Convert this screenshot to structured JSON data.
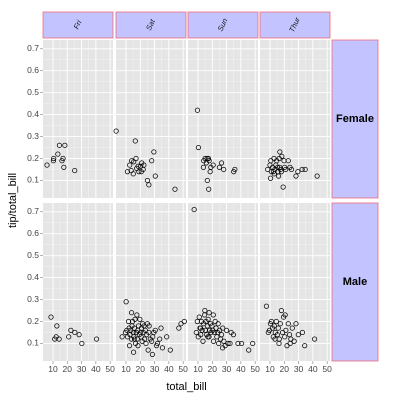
{
  "chart_data": {
    "type": "scatter",
    "xlabel": "total_bill",
    "ylabel": "tip/total_bill",
    "xlim": [
      3,
      52
    ],
    "ylim": [
      0.02,
      0.74
    ],
    "x_ticks": [
      10,
      20,
      30,
      40,
      50
    ],
    "x_tick_labels": [
      "10",
      "20",
      "30",
      "40",
      "50"
    ],
    "y_ticks": [
      0.1,
      0.2,
      0.3,
      0.4,
      0.5,
      0.6,
      0.7
    ],
    "y_tick_labels": [
      "0.1",
      "0.2",
      "0.3",
      "0.4",
      "0.5",
      "0.6",
      "0.7"
    ],
    "grid": true,
    "facet_cols": [
      "Fri",
      "Sat",
      "Sun",
      "Thur"
    ],
    "facet_rows": [
      "Female",
      "Male"
    ],
    "strip_color": "#c3c3ff",
    "strip_border_color": "#f06a7a",
    "panel_background": "#e5e5e5",
    "panels": [
      {
        "row": "Female",
        "col": "Fri",
        "points": [
          [
            5.8,
            0.17
          ],
          [
            10.3,
            0.19
          ],
          [
            13.4,
            0.22
          ],
          [
            14.5,
            0.26
          ],
          [
            16.3,
            0.19
          ],
          [
            17.6,
            0.16
          ],
          [
            18.3,
            0.26
          ],
          [
            17,
            0.2
          ],
          [
            25.2,
            0.145
          ],
          [
            10.5,
            0.2
          ]
        ]
      },
      {
        "row": "Female",
        "col": "Sat",
        "points": [
          [
            3.1,
            0.325
          ],
          [
            11,
            0.14
          ],
          [
            12.6,
            0.17
          ],
          [
            13.6,
            0.145
          ],
          [
            14,
            0.19
          ],
          [
            15.4,
            0.185
          ],
          [
            16.5,
            0.28
          ],
          [
            17.5,
            0.155
          ],
          [
            17,
            0.2
          ],
          [
            18.5,
            0.165
          ],
          [
            19,
            0.14
          ],
          [
            20.3,
            0.165
          ],
          [
            21,
            0.18
          ],
          [
            22,
            0.15
          ],
          [
            22.5,
            0.17
          ],
          [
            20.7,
            0.14
          ],
          [
            25,
            0.1
          ],
          [
            26,
            0.08
          ],
          [
            28,
            0.19
          ],
          [
            29.5,
            0.23
          ],
          [
            30.5,
            0.12
          ],
          [
            44.3,
            0.06
          ],
          [
            15.1,
            0.13
          ]
        ]
      },
      {
        "row": "Female",
        "col": "Sun",
        "points": [
          [
            9.6,
            0.42
          ],
          [
            10.3,
            0.25
          ],
          [
            14,
            0.19
          ],
          [
            15,
            0.2
          ],
          [
            15.8,
            0.18
          ],
          [
            16.4,
            0.2
          ],
          [
            17.3,
            0.2
          ],
          [
            17.8,
            0.19
          ],
          [
            16.5,
            0.1
          ],
          [
            17.5,
            0.06
          ],
          [
            18.5,
            0.14
          ],
          [
            19,
            0.16
          ],
          [
            20.6,
            0.17
          ],
          [
            25,
            0.16
          ],
          [
            26.5,
            0.18
          ],
          [
            28,
            0.15
          ],
          [
            35,
            0.14
          ],
          [
            35.8,
            0.15
          ],
          [
            13.8,
            0.16
          ]
        ]
      },
      {
        "row": "Female",
        "col": "Thur",
        "points": [
          [
            8.4,
            0.15
          ],
          [
            10,
            0.17
          ],
          [
            10.6,
            0.19
          ],
          [
            11,
            0.14
          ],
          [
            11.8,
            0.16
          ],
          [
            12.4,
            0.14
          ],
          [
            12.8,
            0.2
          ],
          [
            13.4,
            0.15
          ],
          [
            14.1,
            0.17
          ],
          [
            14.7,
            0.19
          ],
          [
            15.3,
            0.16
          ],
          [
            15.6,
            0.14
          ],
          [
            16,
            0.12
          ],
          [
            16.4,
            0.2
          ],
          [
            16.8,
            0.16
          ],
          [
            17.4,
            0.15
          ],
          [
            18,
            0.14
          ],
          [
            18.3,
            0.21
          ],
          [
            19.2,
            0.07
          ],
          [
            19.8,
            0.19
          ],
          [
            20.3,
            0.16
          ],
          [
            21,
            0.15
          ],
          [
            22.8,
            0.19
          ],
          [
            24,
            0.16
          ],
          [
            25,
            0.15
          ],
          [
            28.2,
            0.12
          ],
          [
            29.5,
            0.14
          ],
          [
            34.6,
            0.15
          ],
          [
            43,
            0.12
          ],
          [
            16.9,
            0.23
          ],
          [
            32.5,
            0.15
          ],
          [
            13,
            0.13
          ],
          [
            10.4,
            0.11
          ]
        ]
      },
      {
        "row": "Male",
        "col": "Fri",
        "points": [
          [
            8.6,
            0.22
          ],
          [
            11.2,
            0.12
          ],
          [
            12.2,
            0.13
          ],
          [
            12.7,
            0.18
          ],
          [
            14.3,
            0.12
          ],
          [
            21,
            0.13
          ],
          [
            22.5,
            0.16
          ],
          [
            25.3,
            0.15
          ],
          [
            28.3,
            0.14
          ],
          [
            30.2,
            0.1
          ],
          [
            40.5,
            0.12
          ]
        ]
      },
      {
        "row": "Male",
        "col": "Sat",
        "points": [
          [
            7.3,
            0.13
          ],
          [
            9.6,
            0.15
          ],
          [
            10.1,
            0.29
          ],
          [
            10.6,
            0.16
          ],
          [
            11.1,
            0.13
          ],
          [
            11.8,
            0.2
          ],
          [
            12.2,
            0.17
          ],
          [
            12.8,
            0.14
          ],
          [
            13.4,
            0.16
          ],
          [
            13.8,
            0.12
          ],
          [
            14.2,
            0.18
          ],
          [
            14.6,
            0.2
          ],
          [
            15,
            0.15
          ],
          [
            15.5,
            0.13
          ],
          [
            15.9,
            0.17
          ],
          [
            16.3,
            0.21
          ],
          [
            16.7,
            0.1
          ],
          [
            17.2,
            0.15
          ],
          [
            17.6,
            0.23
          ],
          [
            17.9,
            0.12
          ],
          [
            18.3,
            0.16
          ],
          [
            18.8,
            0.18
          ],
          [
            19.3,
            0.14
          ],
          [
            19.7,
            0.21
          ],
          [
            20.1,
            0.15
          ],
          [
            20.6,
            0.13
          ],
          [
            20.9,
            0.17
          ],
          [
            21.3,
            0.11
          ],
          [
            21.7,
            0.19
          ],
          [
            22.1,
            0.15
          ],
          [
            22.6,
            0.18
          ],
          [
            23,
            0.12
          ],
          [
            23.5,
            0.16
          ],
          [
            24,
            0.1
          ],
          [
            24.5,
            0.14
          ],
          [
            25,
            0.19
          ],
          [
            25.5,
            0.07
          ],
          [
            26,
            0.15
          ],
          [
            27,
            0.12
          ],
          [
            28,
            0.11
          ],
          [
            28.5,
            0.05
          ],
          [
            29.5,
            0.15
          ],
          [
            30.5,
            0.16
          ],
          [
            31.3,
            0.09
          ],
          [
            32,
            0.1
          ],
          [
            34.5,
            0.17
          ],
          [
            35.5,
            0.08
          ],
          [
            38.5,
            0.13
          ],
          [
            41,
            0.07
          ],
          [
            47,
            0.17
          ],
          [
            48.5,
            0.19
          ],
          [
            50.8,
            0.2
          ],
          [
            13.9,
            0.24
          ],
          [
            26.2,
            0.18
          ],
          [
            33.6,
            0.12
          ],
          [
            18.4,
            0.09
          ],
          [
            12.5,
            0.09
          ],
          [
            15.3,
            0.06
          ],
          [
            28.7,
            0.13
          ],
          [
            16,
            0.12
          ]
        ]
      },
      {
        "row": "Male",
        "col": "Sun",
        "points": [
          [
            7.3,
            0.71
          ],
          [
            8.8,
            0.15
          ],
          [
            9.5,
            0.2
          ],
          [
            10.2,
            0.13
          ],
          [
            10.9,
            0.22
          ],
          [
            11.4,
            0.17
          ],
          [
            11.9,
            0.14
          ],
          [
            12.4,
            0.2
          ],
          [
            12.9,
            0.16
          ],
          [
            13.5,
            0.11
          ],
          [
            14,
            0.19
          ],
          [
            14.6,
            0.23
          ],
          [
            15.1,
            0.16
          ],
          [
            15.6,
            0.2
          ],
          [
            16.1,
            0.14
          ],
          [
            16.6,
            0.18
          ],
          [
            17.1,
            0.21
          ],
          [
            17.7,
            0.13
          ],
          [
            18.2,
            0.16
          ],
          [
            18.7,
            0.19
          ],
          [
            19.2,
            0.15
          ],
          [
            19.8,
            0.18
          ],
          [
            20.3,
            0.16
          ],
          [
            20.9,
            0.11
          ],
          [
            21.5,
            0.15
          ],
          [
            22,
            0.2
          ],
          [
            22.6,
            0.17
          ],
          [
            23.2,
            0.13
          ],
          [
            23.8,
            0.15
          ],
          [
            24.5,
            0.1
          ],
          [
            25.1,
            0.16
          ],
          [
            25.8,
            0.12
          ],
          [
            26.5,
            0.14
          ],
          [
            27.3,
            0.17
          ],
          [
            28.1,
            0.11
          ],
          [
            29,
            0.09
          ],
          [
            30,
            0.16
          ],
          [
            31,
            0.1
          ],
          [
            32.4,
            0.1
          ],
          [
            33.2,
            0.15
          ],
          [
            34.8,
            0.14
          ],
          [
            38,
            0.1
          ],
          [
            40.5,
            0.1
          ],
          [
            45.5,
            0.07
          ],
          [
            48.3,
            0.1
          ],
          [
            14.8,
            0.25
          ],
          [
            17.8,
            0.24
          ],
          [
            20.7,
            0.23
          ],
          [
            11.8,
            0.17
          ],
          [
            16.9,
            0.13
          ],
          [
            24.1,
            0.19
          ],
          [
            27.2,
            0.08
          ]
        ]
      },
      {
        "row": "Male",
        "col": "Thur",
        "points": [
          [
            7.5,
            0.27
          ],
          [
            8.8,
            0.15
          ],
          [
            9.6,
            0.16
          ],
          [
            10.3,
            0.19
          ],
          [
            11,
            0.2
          ],
          [
            11.7,
            0.17
          ],
          [
            12.3,
            0.13
          ],
          [
            13,
            0.18
          ],
          [
            13.7,
            0.15
          ],
          [
            14.4,
            0.2
          ],
          [
            15.1,
            0.14
          ],
          [
            15.8,
            0.17
          ],
          [
            16.5,
            0.12
          ],
          [
            17.2,
            0.19
          ],
          [
            18,
            0.25
          ],
          [
            18.8,
            0.15
          ],
          [
            19.5,
            0.22
          ],
          [
            20.3,
            0.13
          ],
          [
            21.1,
            0.16
          ],
          [
            21.9,
            0.09
          ],
          [
            22.8,
            0.19
          ],
          [
            23.7,
            0.14
          ],
          [
            24.6,
            0.12
          ],
          [
            25.6,
            0.17
          ],
          [
            26.9,
            0.11
          ],
          [
            28.2,
            0.19
          ],
          [
            29.8,
            0.14
          ],
          [
            32.7,
            0.15
          ],
          [
            34.3,
            0.09
          ],
          [
            41.2,
            0.12
          ],
          [
            20.6,
            0.23
          ],
          [
            16.3,
            0.1
          ],
          [
            13.5,
            0.12
          ],
          [
            24.1,
            0.1
          ]
        ]
      }
    ]
  }
}
